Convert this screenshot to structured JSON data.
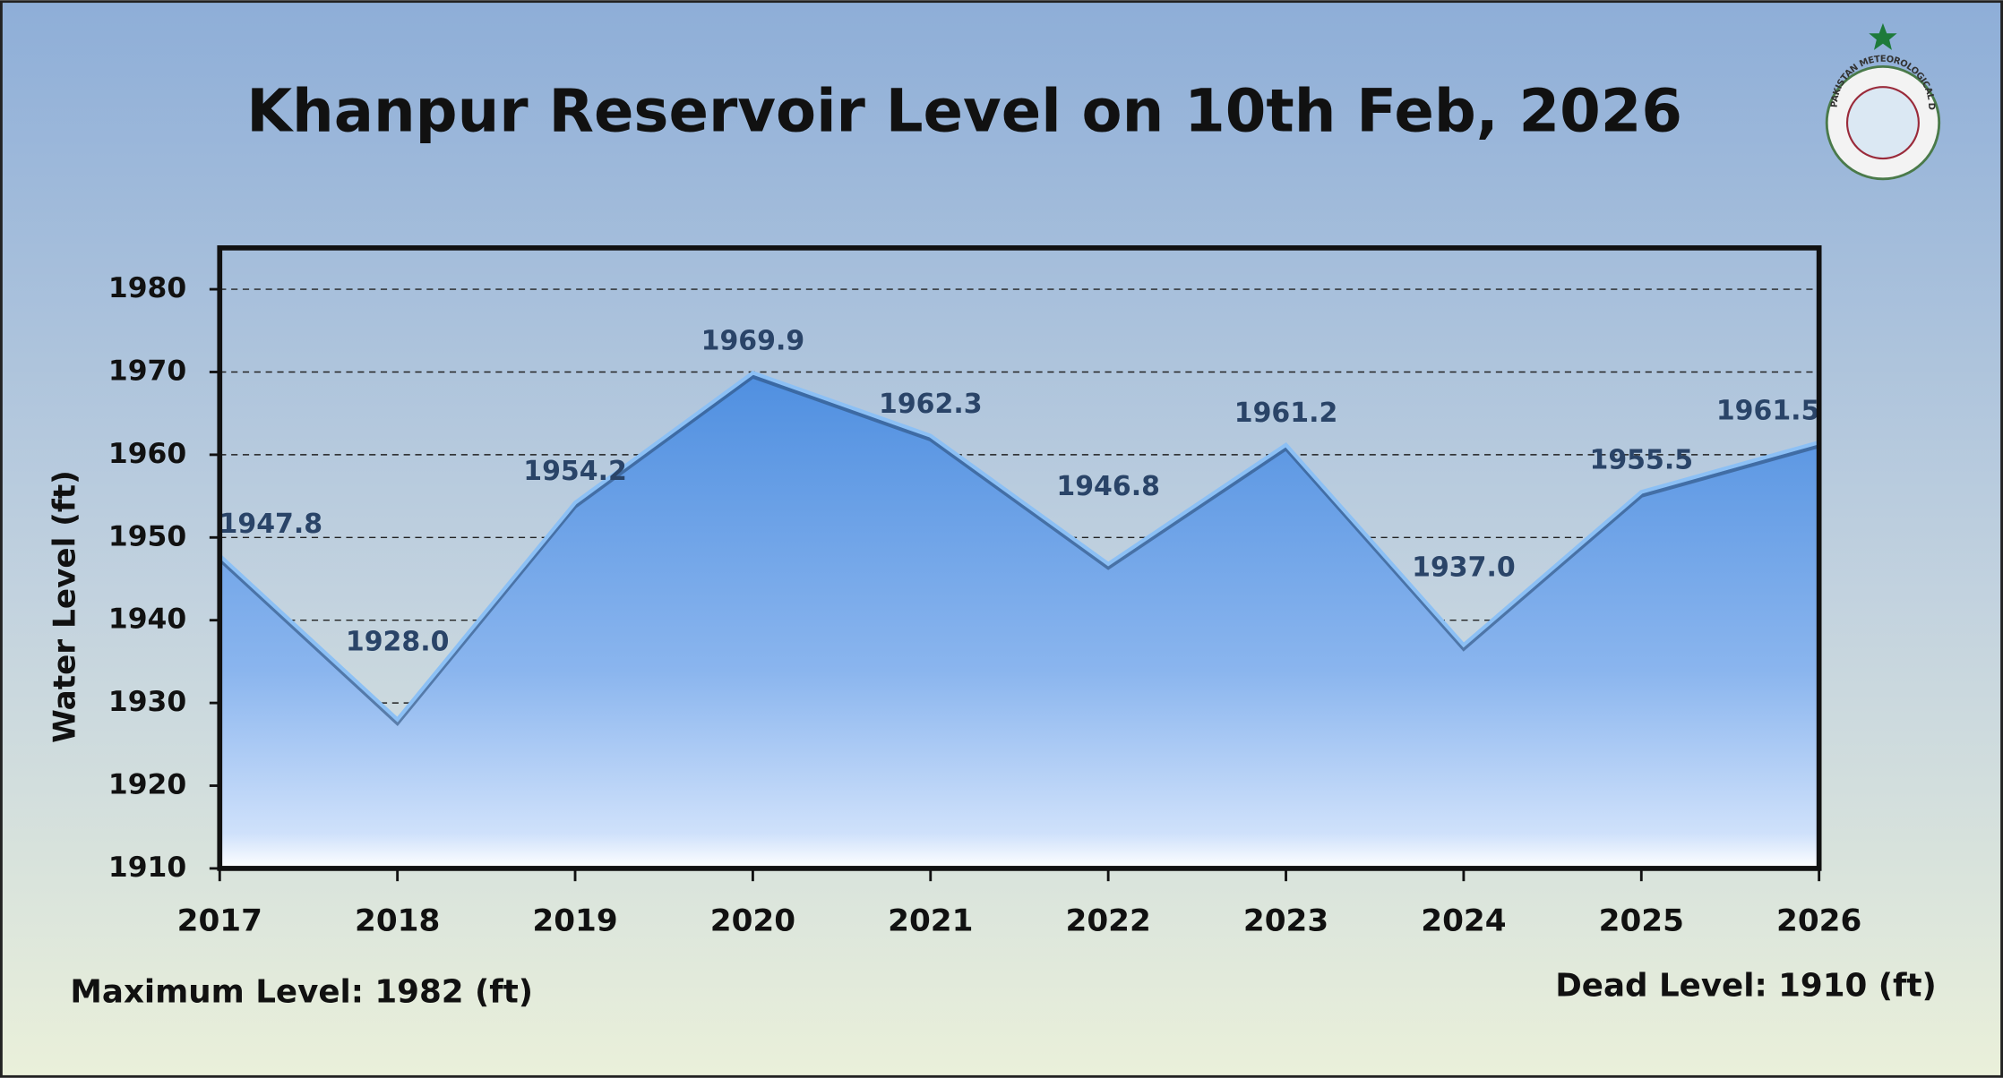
{
  "chart_data": {
    "type": "area",
    "title": "Khanpur Reservoir Level on 10th Feb, 2026",
    "y_label": "Water Level (ft)",
    "notes": [
      "Maximum Level: 1982 (ft)",
      "Dead Level: 1910 (ft)"
    ],
    "logo_text": "PAKISTAN METEOROLOGICAL DEPARTMENT",
    "categories": [
      "2017",
      "2018",
      "2019",
      "2020",
      "2021",
      "2022",
      "2023",
      "2024",
      "2025",
      "2026"
    ],
    "values": [
      1947.8,
      1928.0,
      1954.2,
      1969.9,
      1962.3,
      1946.8,
      1961.2,
      1937.0,
      1955.5,
      1961.5
    ],
    "value_labels": [
      "1947.8",
      "1928.0",
      "1954.2",
      "1969.9",
      "1962.3",
      "1946.8",
      "1961.2",
      "1937.0",
      "1955.5",
      "1961.5"
    ],
    "color": "#4a8ad8",
    "ylim": [
      1910,
      1985
    ],
    "yticks": [
      1910,
      1920,
      1930,
      1940,
      1950,
      1960,
      1970,
      1980
    ],
    "grid": true
  }
}
